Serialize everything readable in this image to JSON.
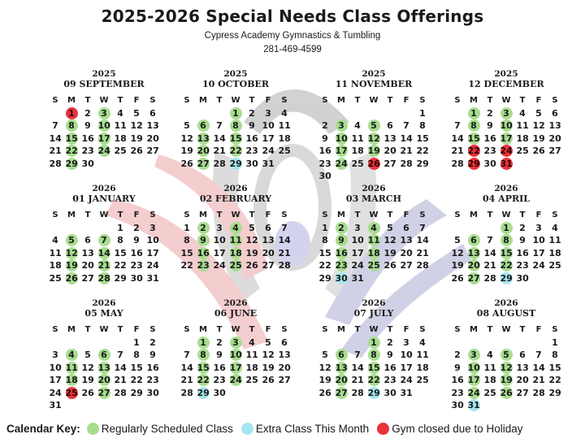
{
  "title": "2025-2026 Special Needs Class Offerings",
  "org": "Cypress Academy Gymnastics & Tumbling",
  "phone": "281-469-4599",
  "weekdays": [
    "S",
    "M",
    "T",
    "W",
    "T",
    "F",
    "S"
  ],
  "colors": {
    "regular": "#a8dd90",
    "extra": "#a4e6ee",
    "closed": "#e8333b"
  },
  "legend": {
    "label": "Calendar Key:",
    "items": [
      {
        "text": "Regularly Scheduled Class",
        "type": "g"
      },
      {
        "text": "Extra Class This Month",
        "type": "b"
      },
      {
        "text": "Gym closed due to Holiday",
        "type": "r"
      }
    ]
  },
  "months": [
    {
      "year": "2025",
      "name": "09 SEPTEMBER",
      "start": 1,
      "days": 30,
      "g": [
        3,
        8,
        10,
        15,
        17,
        22,
        24,
        29
      ],
      "b": [],
      "r": [
        1
      ]
    },
    {
      "year": "2025",
      "name": "10 OCTOBER",
      "start": 3,
      "days": 31,
      "g": [
        1,
        6,
        8,
        13,
        15,
        20,
        22,
        27
      ],
      "b": [
        29
      ],
      "r": []
    },
    {
      "year": "2025",
      "name": "11 NOVEMBER",
      "start": 6,
      "days": 30,
      "g": [
        3,
        5,
        10,
        12,
        17,
        19,
        24
      ],
      "b": [],
      "r": [
        26
      ]
    },
    {
      "year": "2025",
      "name": "12 DECEMBER",
      "start": 1,
      "days": 31,
      "g": [
        1,
        3,
        8,
        10,
        15,
        17
      ],
      "b": [],
      "r": [
        22,
        24,
        29,
        31
      ]
    },
    {
      "year": "2026",
      "name": "01 JANUARY",
      "start": 4,
      "days": 31,
      "g": [
        5,
        7,
        12,
        14,
        19,
        21,
        26,
        28
      ],
      "b": [],
      "r": []
    },
    {
      "year": "2026",
      "name": "02 FEBRUARY",
      "start": 0,
      "days": 28,
      "g": [
        2,
        4,
        9,
        11,
        16,
        18,
        23,
        25
      ],
      "b": [],
      "r": []
    },
    {
      "year": "2026",
      "name": "03 MARCH",
      "start": 0,
      "days": 31,
      "g": [
        2,
        4,
        9,
        11,
        16,
        18,
        23,
        25
      ],
      "b": [
        30
      ],
      "r": []
    },
    {
      "year": "2026",
      "name": "04 APRIL",
      "start": 3,
      "days": 30,
      "g": [
        1,
        6,
        8,
        13,
        15,
        20,
        22,
        27
      ],
      "b": [
        29
      ],
      "r": []
    },
    {
      "year": "2026",
      "name": "05 MAY",
      "start": 5,
      "days": 31,
      "g": [
        4,
        6,
        11,
        13,
        18,
        20,
        27
      ],
      "b": [],
      "r": [
        25
      ]
    },
    {
      "year": "2026",
      "name": "06 JUNE",
      "start": 1,
      "days": 30,
      "g": [
        1,
        3,
        8,
        10,
        15,
        17,
        22,
        24
      ],
      "b": [
        29
      ],
      "r": []
    },
    {
      "year": "2026",
      "name": "07 JULY",
      "start": 3,
      "days": 31,
      "g": [
        1,
        6,
        8,
        13,
        15,
        20,
        22,
        27
      ],
      "b": [
        29
      ],
      "r": []
    },
    {
      "year": "2026",
      "name": "08 AUGUST",
      "start": 6,
      "days": 31,
      "g": [
        3,
        5,
        10,
        12,
        17,
        19,
        24,
        26
      ],
      "b": [
        31
      ],
      "r": []
    }
  ]
}
